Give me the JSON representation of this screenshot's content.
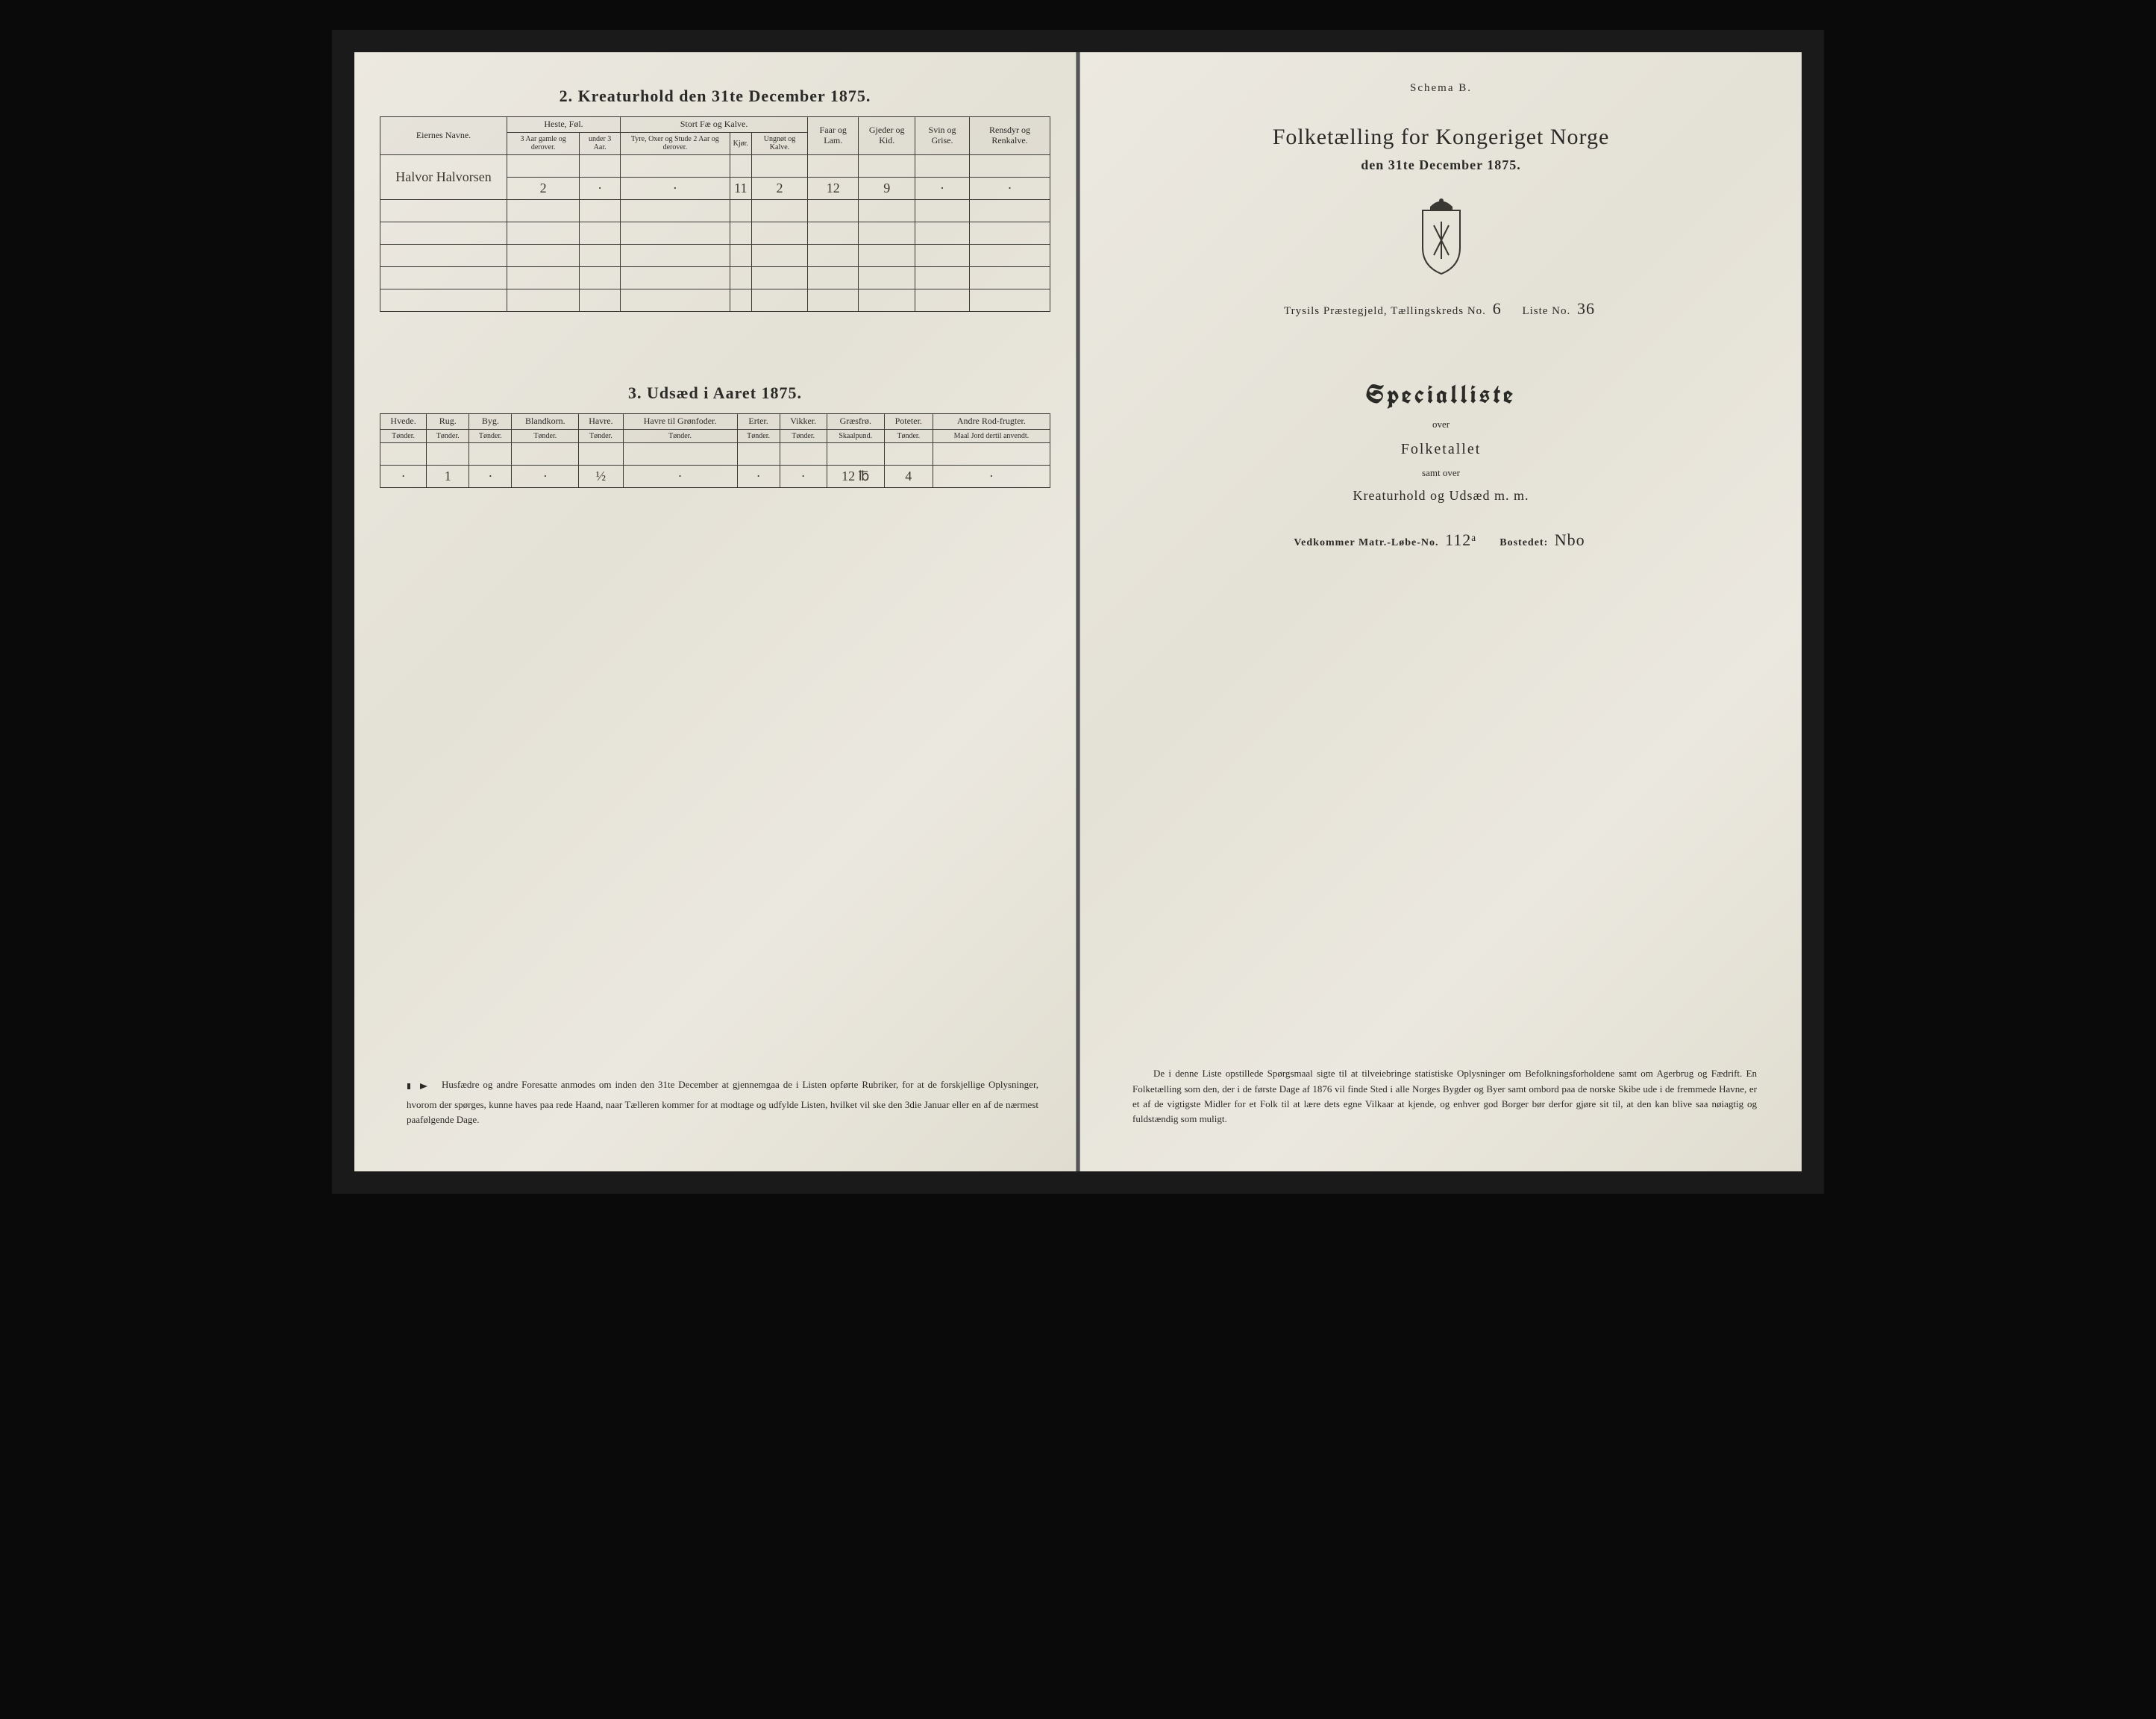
{
  "left_page": {
    "section2": {
      "title": "2.  Kreaturhold den 31te December 1875.",
      "header_groups": {
        "owner": "Eiernes Navne.",
        "horses": "Heste, Føl.",
        "cattle": "Stort Fæ og Kalve.",
        "sheep": "Faar og Lam.",
        "goats": "Gjeder og Kid.",
        "pigs": "Svin og Grise.",
        "reindeer": "Rensdyr og Renkalve."
      },
      "sub_headers": {
        "horses_a": "3 Aar gamle og derover.",
        "horses_b": "under 3 Aar.",
        "cattle_a": "Tyre, Oxer og Stude 2 Aar og derover.",
        "cattle_b": "Kjør.",
        "cattle_c": "Ungnøt og Kalve."
      },
      "owner_name": "Halvor Halvorsen",
      "row_values": [
        "2",
        "·",
        "·",
        "11",
        "2",
        "12",
        "9",
        "·",
        "·"
      ],
      "empty_row_count": 5
    },
    "section3": {
      "title": "3.  Udsæd i Aaret 1875.",
      "columns": [
        {
          "name": "Hvede.",
          "unit": "Tønder."
        },
        {
          "name": "Rug.",
          "unit": "Tønder."
        },
        {
          "name": "Byg.",
          "unit": "Tønder."
        },
        {
          "name": "Blandkorn.",
          "unit": "Tønder."
        },
        {
          "name": "Havre.",
          "unit": "Tønder."
        },
        {
          "name": "Havre til Grønfoder.",
          "unit": "Tønder."
        },
        {
          "name": "Erter.",
          "unit": "Tønder."
        },
        {
          "name": "Vikker.",
          "unit": "Tønder."
        },
        {
          "name": "Græsfrø.",
          "unit": "Skaalpund."
        },
        {
          "name": "Poteter.",
          "unit": "Tønder."
        },
        {
          "name": "Andre Rod-frugter.",
          "unit": "Maal Jord dertil anvendt."
        }
      ],
      "row_values": [
        "·",
        "1",
        "·",
        "·",
        "½",
        "·",
        "·",
        "·",
        "12 ℔",
        "4",
        "·"
      ]
    },
    "notice": "Husfædre og andre Foresatte anmodes om inden den 31te December at gjennemgaa de i Listen opførte Rubriker, for at de forskjellige Oplysninger, hvorom der spørges, kunne haves paa rede Haand, naar Tælleren kommer for at modtage og udfylde Listen, hvilket vil ske den 3die Januar eller en af de nærmest paafølgende Dage."
  },
  "right_page": {
    "schema": "Schema B.",
    "title": "Folketælling for Kongeriget Norge",
    "subtitle": "den 31te December 1875.",
    "district": {
      "prefix": "Trysils Præstegjeld, Tællingskreds No.",
      "kreds_no": "6",
      "liste_label": "Liste No.",
      "liste_no": "36"
    },
    "speciallist": {
      "title": "Specialliste",
      "over": "over",
      "line2": "Folketallet",
      "line3": "samt over",
      "line4": "Kreaturhold og Udsæd m. m."
    },
    "matr": {
      "label_a": "Vedkommer Matr.-Løbe-No.",
      "value_a": "112ᵃ",
      "label_b": "Bostedet:",
      "value_b": "Nbo"
    },
    "paragraph": "De i denne Liste opstillede Spørgsmaal sigte til at tilveiebringe statistiske Oplysninger om Befolkningsforholdene samt om Agerbrug og Fædrift.  En Folketælling som den, der i de første Dage af 1876 vil finde Sted i alle Norges Bygder og Byer samt ombord paa de norske Skibe ude i de fremmede Havne, er et af de vigtigste Midler for et Folk til at lære dets egne Vilkaar at kjende, og enhver god Borger bør derfor gjøre sit til, at den kan blive saa nøiagtig og fuldstændig som muligt."
  },
  "colors": {
    "paper": "#e8e6de",
    "ink": "#2a2a26",
    "frame": "#0a0a0a"
  }
}
